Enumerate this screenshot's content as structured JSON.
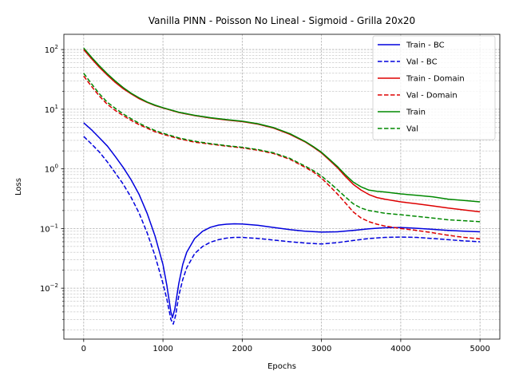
{
  "chart_data": {
    "type": "line",
    "title": "Vanilla PINN - Poisson No Lineal - Sigmoid - Grilla 20x20",
    "xlabel": "Epochs",
    "ylabel": "Loss",
    "yscale": "log",
    "xlim": [
      -250,
      5250
    ],
    "ylim": [
      0.0014,
      180
    ],
    "xticks": [
      0,
      1000,
      2000,
      3000,
      4000,
      5000
    ],
    "yticks": [
      0.01,
      0.1,
      1,
      10,
      100
    ],
    "ytick_labels": [
      [
        "10",
        "−2"
      ],
      [
        "10",
        "−1"
      ],
      [
        "10",
        "0"
      ],
      [
        "10",
        "1"
      ],
      [
        "10",
        "2"
      ]
    ],
    "grid": true,
    "legend_position": "top-right",
    "series": [
      {
        "name": "Train - BC",
        "color": "#0000dd",
        "dash": "solid",
        "x": [
          0,
          100,
          200,
          300,
          400,
          500,
          600,
          700,
          800,
          900,
          1000,
          1050,
          1100,
          1120,
          1150,
          1200,
          1250,
          1300,
          1400,
          1500,
          1600,
          1700,
          1800,
          1900,
          2000,
          2200,
          2400,
          2600,
          2800,
          3000,
          3200,
          3400,
          3600,
          3800,
          4000,
          4200,
          4400,
          4600,
          4800,
          5000
        ],
        "y": [
          5.9,
          4.5,
          3.3,
          2.4,
          1.6,
          1.05,
          0.65,
          0.37,
          0.18,
          0.075,
          0.025,
          0.011,
          0.004,
          0.0032,
          0.0045,
          0.012,
          0.025,
          0.04,
          0.068,
          0.09,
          0.105,
          0.114,
          0.118,
          0.12,
          0.119,
          0.113,
          0.104,
          0.096,
          0.09,
          0.087,
          0.088,
          0.093,
          0.099,
          0.103,
          0.104,
          0.101,
          0.097,
          0.093,
          0.09,
          0.088
        ]
      },
      {
        "name": "Val - BC",
        "color": "#0000dd",
        "dash": "dashed",
        "x": [
          0,
          100,
          200,
          300,
          400,
          500,
          600,
          700,
          800,
          900,
          1000,
          1050,
          1100,
          1130,
          1160,
          1200,
          1250,
          1300,
          1400,
          1500,
          1600,
          1700,
          1800,
          1900,
          2000,
          2200,
          2400,
          2600,
          2800,
          3000,
          3200,
          3400,
          3600,
          3800,
          4000,
          4200,
          4400,
          4600,
          4800,
          5000
        ],
        "y": [
          3.5,
          2.6,
          1.9,
          1.3,
          0.85,
          0.55,
          0.33,
          0.18,
          0.085,
          0.035,
          0.012,
          0.0065,
          0.003,
          0.0025,
          0.0035,
          0.0075,
          0.014,
          0.022,
          0.038,
          0.05,
          0.059,
          0.065,
          0.069,
          0.071,
          0.071,
          0.068,
          0.064,
          0.06,
          0.057,
          0.055,
          0.058,
          0.063,
          0.068,
          0.071,
          0.072,
          0.071,
          0.068,
          0.065,
          0.062,
          0.06
        ]
      },
      {
        "name": "Train - Domain",
        "color": "#dd0000",
        "dash": "solid",
        "x": [
          0,
          100,
          200,
          300,
          400,
          500,
          600,
          700,
          800,
          900,
          1000,
          1200,
          1400,
          1600,
          1800,
          2000,
          2200,
          2400,
          2600,
          2800,
          2900,
          3000,
          3100,
          3200,
          3300,
          3400,
          3500,
          3600,
          3700,
          3800,
          4000,
          4200,
          4400,
          4600,
          4800,
          5000
        ],
        "y": [
          100,
          70,
          50,
          37,
          28,
          22,
          18,
          15,
          13,
          11.5,
          10.5,
          8.8,
          7.8,
          7.1,
          6.6,
          6.2,
          5.6,
          4.8,
          3.8,
          2.8,
          2.3,
          1.85,
          1.4,
          1.05,
          0.75,
          0.55,
          0.44,
          0.37,
          0.33,
          0.31,
          0.28,
          0.26,
          0.24,
          0.22,
          0.205,
          0.19
        ]
      },
      {
        "name": "Val - Domain",
        "color": "#dd0000",
        "dash": "dashed",
        "x": [
          0,
          100,
          200,
          300,
          400,
          500,
          600,
          700,
          800,
          900,
          1000,
          1200,
          1400,
          1600,
          1800,
          2000,
          2200,
          2400,
          2600,
          2800,
          2900,
          3000,
          3100,
          3200,
          3300,
          3400,
          3500,
          3600,
          3700,
          3800,
          4000,
          4200,
          4400,
          4600,
          4800,
          5000
        ],
        "y": [
          36,
          24,
          16.5,
          12,
          9.5,
          7.8,
          6.5,
          5.5,
          4.8,
          4.2,
          3.8,
          3.2,
          2.8,
          2.6,
          2.4,
          2.25,
          2.05,
          1.8,
          1.45,
          1.05,
          0.88,
          0.7,
          0.52,
          0.38,
          0.27,
          0.19,
          0.15,
          0.13,
          0.118,
          0.11,
          0.1,
          0.093,
          0.085,
          0.077,
          0.071,
          0.067
        ]
      },
      {
        "name": "Train",
        "color": "#008800",
        "dash": "solid",
        "x": [
          0,
          100,
          200,
          300,
          400,
          500,
          600,
          700,
          800,
          900,
          1000,
          1200,
          1400,
          1600,
          1800,
          2000,
          2200,
          2400,
          2600,
          2800,
          2900,
          3000,
          3100,
          3200,
          3300,
          3400,
          3500,
          3600,
          3700,
          3800,
          4000,
          4200,
          4400,
          4600,
          4800,
          5000
        ],
        "y": [
          106,
          74,
          53,
          39,
          29.5,
          23,
          18.5,
          15.5,
          13.2,
          11.7,
          10.6,
          8.9,
          7.9,
          7.2,
          6.7,
          6.3,
          5.7,
          4.9,
          3.9,
          2.85,
          2.35,
          1.9,
          1.45,
          1.1,
          0.8,
          0.6,
          0.5,
          0.44,
          0.42,
          0.41,
          0.38,
          0.36,
          0.34,
          0.31,
          0.295,
          0.28
        ]
      },
      {
        "name": "Val",
        "color": "#008800",
        "dash": "dashed",
        "x": [
          0,
          100,
          200,
          300,
          400,
          500,
          600,
          700,
          800,
          900,
          1000,
          1200,
          1400,
          1600,
          1800,
          2000,
          2200,
          2400,
          2600,
          2800,
          2900,
          3000,
          3100,
          3200,
          3300,
          3400,
          3500,
          3600,
          3700,
          3800,
          4000,
          4200,
          4400,
          4600,
          4800,
          5000
        ],
        "y": [
          40,
          26.5,
          18,
          13,
          10.3,
          8.3,
          6.9,
          5.8,
          5.0,
          4.4,
          3.95,
          3.3,
          2.9,
          2.65,
          2.45,
          2.3,
          2.1,
          1.85,
          1.5,
          1.1,
          0.93,
          0.76,
          0.59,
          0.45,
          0.34,
          0.26,
          0.22,
          0.2,
          0.19,
          0.18,
          0.17,
          0.16,
          0.15,
          0.14,
          0.135,
          0.13
        ]
      }
    ]
  }
}
